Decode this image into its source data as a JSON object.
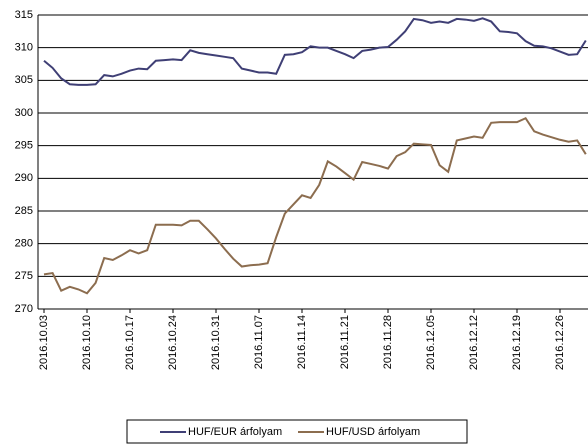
{
  "chart_data": {
    "type": "line",
    "categories": [
      "2016.10.03",
      null,
      null,
      null,
      null,
      "2016.10.10",
      null,
      null,
      null,
      null,
      "2016.10.17",
      null,
      null,
      null,
      null,
      "2016.10.24",
      null,
      null,
      null,
      null,
      "2016.10.31",
      null,
      null,
      null,
      null,
      "2016.11.07",
      null,
      null,
      null,
      null,
      "2016.11.14",
      null,
      null,
      null,
      null,
      "2016.11.21",
      null,
      null,
      null,
      null,
      "2016.11.28",
      null,
      null,
      null,
      null,
      "2016.12.05",
      null,
      null,
      null,
      null,
      "2016.12.12",
      null,
      null,
      null,
      null,
      "2016.12.19",
      null,
      null,
      null,
      null,
      "2016.12.26",
      null,
      null,
      null
    ],
    "series": [
      {
        "name": "HUF/EUR árfolyam",
        "color": "#3f3f75",
        "values": [
          308.0,
          306.9,
          305.3,
          304.4,
          304.3,
          304.3,
          304.4,
          305.8,
          305.6,
          306.0,
          306.5,
          306.8,
          306.7,
          308.0,
          308.1,
          308.2,
          308.1,
          309.6,
          309.2,
          309.0,
          308.8,
          308.6,
          308.4,
          306.8,
          306.5,
          306.2,
          306.2,
          306.0,
          308.9,
          309.0,
          309.3,
          310.2,
          310.0,
          310.0,
          309.5,
          309.0,
          308.4,
          309.5,
          309.7,
          310.0,
          310.1,
          311.2,
          312.5,
          314.4,
          314.2,
          313.8,
          314.0,
          313.8,
          314.4,
          314.3,
          314.1,
          314.5,
          314.0,
          312.5,
          312.4,
          312.2,
          311.0,
          310.3,
          310.2,
          309.9,
          309.4,
          308.9,
          309.0,
          311.1
        ]
      },
      {
        "name": "HUF/USD árfolyam",
        "color": "#8c6d4f",
        "values": [
          275.3,
          275.5,
          272.8,
          273.4,
          273.0,
          272.4,
          274.0,
          277.8,
          277.5,
          278.2,
          279.0,
          278.5,
          279.0,
          282.9,
          282.9,
          282.9,
          282.8,
          283.5,
          283.5,
          282.2,
          280.8,
          279.2,
          277.7,
          276.5,
          276.7,
          276.8,
          277.0,
          281.0,
          284.6,
          286.0,
          287.4,
          287.0,
          289.0,
          292.6,
          291.8,
          290.8,
          289.8,
          292.5,
          292.2,
          291.9,
          291.5,
          293.4,
          294.0,
          295.3,
          295.2,
          295.1,
          292.0,
          291.0,
          295.8,
          296.1,
          296.4,
          296.2,
          298.5,
          298.6,
          298.6,
          298.6,
          299.2,
          297.2,
          296.7,
          296.3,
          295.9,
          295.6,
          295.8,
          293.7
        ]
      }
    ],
    "ylim": [
      270,
      315
    ],
    "yticks": [
      270,
      275,
      280,
      285,
      290,
      295,
      300,
      305,
      310,
      315
    ],
    "grid": true,
    "legend": "bottom"
  }
}
